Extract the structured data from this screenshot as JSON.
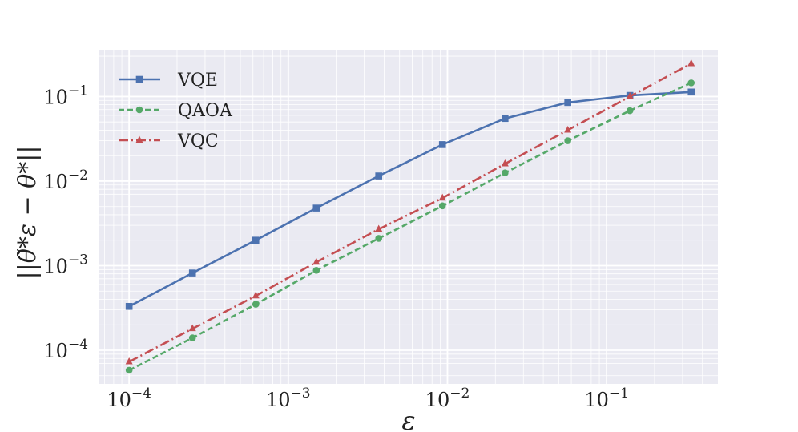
{
  "chart_data": {
    "type": "line",
    "title": "",
    "xlabel": "ε",
    "ylabel": "||θ̃*ε − θ*||",
    "xscale": "log",
    "yscale": "log",
    "xlim": [
      6.5e-05,
      0.5
    ],
    "ylim": [
      4e-05,
      0.35
    ],
    "grid": true,
    "legend_position": "top-left",
    "x_ticks": [
      {
        "value": 0.0001,
        "base": "10",
        "exp": "−4"
      },
      {
        "value": 0.001,
        "base": "10",
        "exp": "−3"
      },
      {
        "value": 0.01,
        "base": "10",
        "exp": "−2"
      },
      {
        "value": 0.1,
        "base": "10",
        "exp": "−1"
      }
    ],
    "y_ticks": [
      {
        "value": 0.0001,
        "base": "10",
        "exp": "−4"
      },
      {
        "value": 0.001,
        "base": "10",
        "exp": "−3"
      },
      {
        "value": 0.01,
        "base": "10",
        "exp": "−2"
      },
      {
        "value": 0.1,
        "base": "10",
        "exp": "−1"
      }
    ],
    "x": [
      0.0001,
      0.00025,
      0.000625,
      0.0015,
      0.0037,
      0.0093,
      0.023,
      0.057,
      0.14,
      0.34
    ],
    "series": [
      {
        "name": "VQE",
        "color": "#4c72b0",
        "linestyle": "solid",
        "marker": "square",
        "values": [
          0.00033,
          0.00082,
          0.002,
          0.0048,
          0.0115,
          0.027,
          0.055,
          0.085,
          0.103,
          0.113
        ]
      },
      {
        "name": "QAOA",
        "color": "#55a868",
        "linestyle": "dashed",
        "marker": "circle",
        "values": [
          5.8e-05,
          0.00014,
          0.00035,
          0.00088,
          0.0021,
          0.0051,
          0.0125,
          0.03,
          0.068,
          0.145
        ]
      },
      {
        "name": "VQC",
        "color": "#c44e52",
        "linestyle": "dashdot",
        "marker": "triangle",
        "values": [
          7.3e-05,
          0.00018,
          0.00044,
          0.0011,
          0.0027,
          0.0063,
          0.016,
          0.04,
          0.1,
          0.245
        ]
      }
    ]
  }
}
